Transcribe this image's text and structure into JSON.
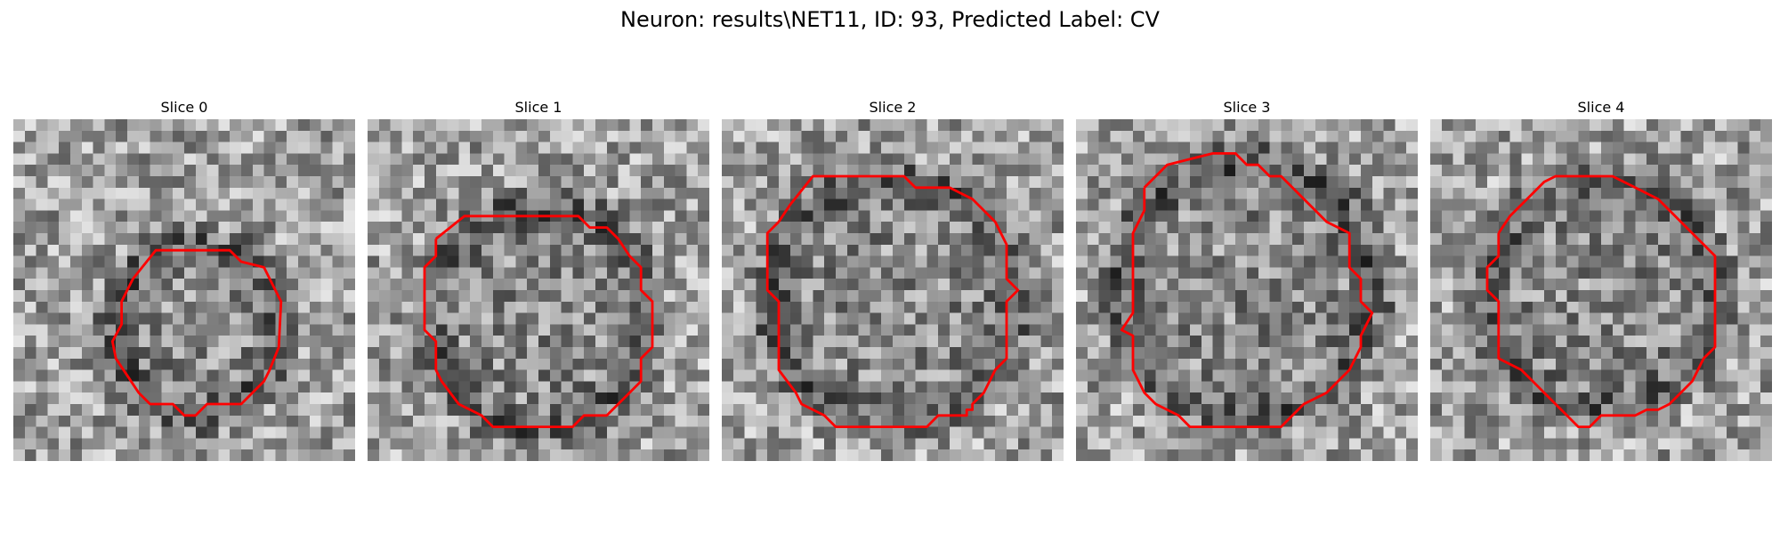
{
  "figure": {
    "title": "Neuron: results\\NET11, ID: 93, Predicted Label: CV"
  },
  "panels": [
    {
      "title": "Slice 0"
    },
    {
      "title": "Slice 1"
    },
    {
      "title": "Slice 2"
    },
    {
      "title": "Slice 3"
    },
    {
      "title": "Slice 4"
    }
  ],
  "colors": {
    "contour": "#ff0000",
    "colormap": "gray"
  }
}
